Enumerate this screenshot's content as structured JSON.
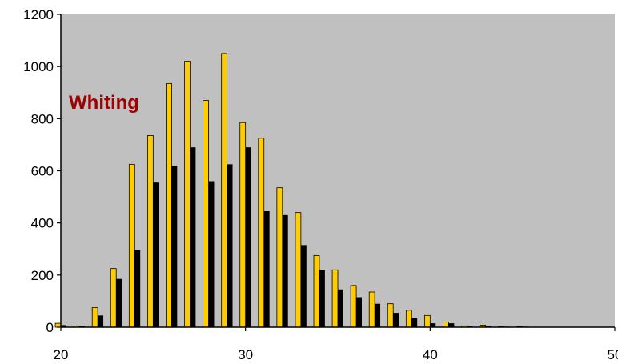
{
  "chart_data": {
    "type": "bar",
    "title": "",
    "xlabel": "",
    "ylabel": "",
    "xlim": [
      20,
      50
    ],
    "ylim": [
      0,
      1200
    ],
    "x_ticks": [
      "20",
      "30",
      "40",
      "50"
    ],
    "y_ticks": [
      "0",
      "200",
      "400",
      "600",
      "800",
      "1000",
      "1200"
    ],
    "grid": false,
    "legend": "none",
    "annotation": "Whiting",
    "colors": {
      "plot_background": "#c0c0c0",
      "series_a": "#ffcc00",
      "series_b": "#000000",
      "annotation": "#a00000"
    },
    "x": [
      20,
      21,
      22,
      23,
      24,
      25,
      26,
      27,
      28,
      29,
      30,
      31,
      32,
      33,
      34,
      35,
      36,
      37,
      38,
      39,
      40,
      41,
      42,
      43,
      44,
      45
    ],
    "series": [
      {
        "values": [
          15,
          5,
          75,
          225,
          625,
          735,
          935,
          1020,
          870,
          1050,
          785,
          725,
          535,
          440,
          275,
          220,
          160,
          135,
          90,
          65,
          45,
          20,
          5,
          8,
          3,
          2
        ]
      },
      {
        "values": [
          8,
          5,
          45,
          185,
          295,
          555,
          620,
          690,
          560,
          625,
          690,
          445,
          430,
          315,
          220,
          145,
          115,
          90,
          55,
          35,
          15,
          15,
          5,
          5,
          2,
          2
        ]
      }
    ]
  }
}
